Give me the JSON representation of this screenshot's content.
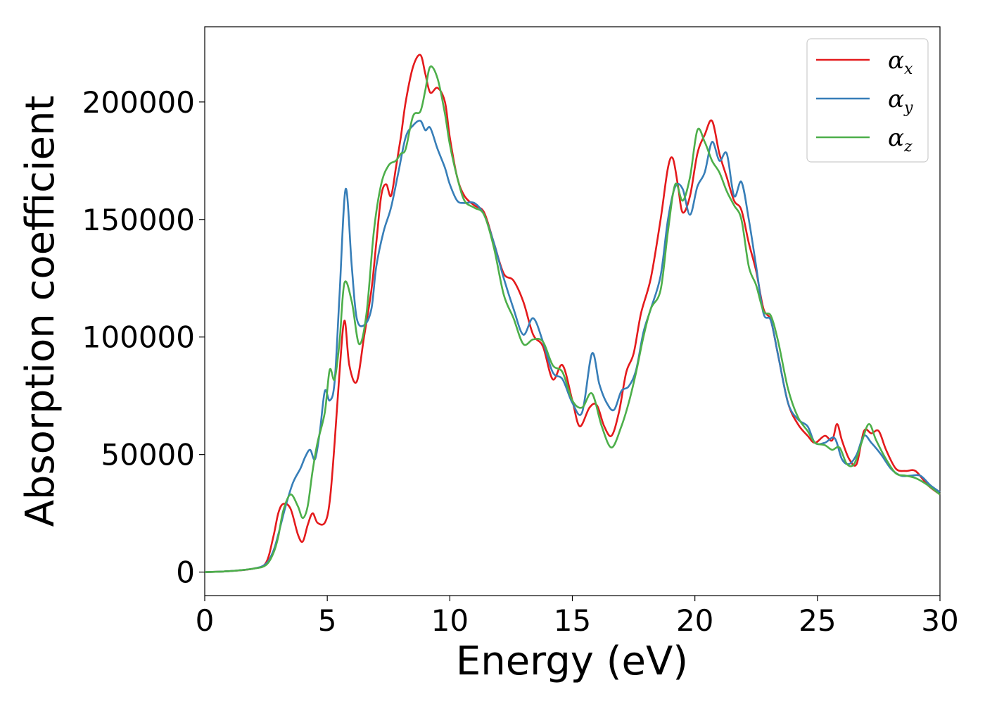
{
  "chart_data": {
    "type": "line",
    "title": "",
    "xlabel": "Energy (eV)",
    "ylabel": "Absorption coefficient",
    "xlim": [
      0,
      30
    ],
    "ylim": [
      -10000,
      232000
    ],
    "xticks": [
      0,
      5,
      10,
      15,
      20,
      25,
      30
    ],
    "yticks": [
      0,
      50000,
      100000,
      150000,
      200000
    ],
    "grid": false,
    "legend_position": "top-right",
    "series": [
      {
        "name": "α_x",
        "label_main": "α",
        "label_sub": "x",
        "color": "#e41a1c",
        "x": [
          0,
          1,
          2,
          2.5,
          2.8,
          3.0,
          3.2,
          3.5,
          3.8,
          4.0,
          4.2,
          4.4,
          4.6,
          4.9,
          5.1,
          5.3,
          5.5,
          5.7,
          5.9,
          6.2,
          6.5,
          6.8,
          7.0,
          7.2,
          7.4,
          7.6,
          7.8,
          8.0,
          8.2,
          8.5,
          8.8,
          9.0,
          9.2,
          9.5,
          9.8,
          10.0,
          10.3,
          10.6,
          11.0,
          11.4,
          11.8,
          12.2,
          12.6,
          13.0,
          13.4,
          13.8,
          14.2,
          14.6,
          15.0,
          15.3,
          15.7,
          16.0,
          16.3,
          16.6,
          16.9,
          17.2,
          17.5,
          17.8,
          18.2,
          18.6,
          18.9,
          19.1,
          19.3,
          19.5,
          19.8,
          20.1,
          20.4,
          20.7,
          21.0,
          21.3,
          21.6,
          21.9,
          22.2,
          22.5,
          22.8,
          23.1,
          23.4,
          23.8,
          24.2,
          24.6,
          24.9,
          25.3,
          25.6,
          25.8,
          26.0,
          26.3,
          26.6,
          26.9,
          27.2,
          27.5,
          27.8,
          28.2,
          28.6,
          29.0,
          29.5,
          30.0
        ],
        "values": [
          0,
          400,
          1500,
          4000,
          15000,
          25000,
          29000,
          27000,
          16000,
          13000,
          20000,
          25000,
          21000,
          21000,
          30000,
          55000,
          85000,
          107000,
          88000,
          81000,
          100000,
          120000,
          140000,
          160000,
          165000,
          160000,
          172000,
          185000,
          200000,
          215000,
          220000,
          212000,
          204000,
          206000,
          200000,
          185000,
          168000,
          160000,
          156000,
          153000,
          140000,
          127000,
          124000,
          115000,
          101000,
          96000,
          82000,
          88000,
          73000,
          62000,
          70000,
          71000,
          62000,
          58000,
          68000,
          85000,
          93000,
          110000,
          125000,
          150000,
          172000,
          176000,
          165000,
          153000,
          160000,
          178000,
          186000,
          192000,
          178000,
          168000,
          158000,
          154000,
          140000,
          128000,
          112000,
          107000,
          92000,
          72000,
          63000,
          58000,
          55000,
          58000,
          56000,
          63000,
          56000,
          48000,
          46000,
          60000,
          59000,
          60000,
          52000,
          44000,
          43000,
          43000,
          37000,
          33000
        ]
      },
      {
        "name": "α_y",
        "label_main": "α",
        "label_sub": "y",
        "color": "#377eb8",
        "x": [
          0,
          1,
          2,
          2.5,
          2.8,
          3.0,
          3.3,
          3.6,
          3.9,
          4.1,
          4.3,
          4.5,
          4.7,
          4.9,
          5.1,
          5.3,
          5.5,
          5.75,
          6.0,
          6.2,
          6.5,
          6.8,
          7.0,
          7.3,
          7.6,
          7.9,
          8.2,
          8.5,
          8.8,
          9.0,
          9.2,
          9.5,
          9.8,
          10.0,
          10.3,
          10.6,
          11.0,
          11.4,
          11.8,
          12.2,
          12.6,
          13.0,
          13.4,
          13.8,
          14.2,
          14.6,
          15.0,
          15.4,
          15.8,
          16.1,
          16.4,
          16.7,
          17.0,
          17.3,
          17.6,
          17.9,
          18.2,
          18.6,
          18.9,
          19.2,
          19.5,
          19.8,
          20.1,
          20.4,
          20.7,
          21.0,
          21.3,
          21.6,
          21.9,
          22.2,
          22.5,
          22.8,
          23.1,
          23.4,
          23.8,
          24.2,
          24.6,
          24.9,
          25.3,
          25.7,
          26.0,
          26.3,
          26.6,
          26.9,
          27.2,
          27.6,
          28.0,
          28.4,
          28.8,
          29.2,
          29.6,
          30.0
        ],
        "values": [
          0,
          400,
          1500,
          3500,
          9000,
          16000,
          28000,
          38000,
          44000,
          49000,
          52000,
          48000,
          60000,
          77000,
          73000,
          81000,
          118000,
          163000,
          130000,
          108000,
          105000,
          112000,
          130000,
          145000,
          155000,
          170000,
          185000,
          190000,
          192000,
          188000,
          189000,
          180000,
          172000,
          165000,
          158000,
          157000,
          157000,
          152000,
          140000,
          125000,
          112000,
          101000,
          108000,
          98000,
          85000,
          82000,
          72000,
          68000,
          93000,
          80000,
          72000,
          69000,
          77000,
          79000,
          86000,
          102000,
          112000,
          126000,
          150000,
          164000,
          163000,
          152000,
          164000,
          170000,
          183000,
          175000,
          178000,
          160000,
          166000,
          150000,
          130000,
          110000,
          107000,
          92000,
          72000,
          65000,
          62000,
          55000,
          55000,
          57000,
          48000,
          46000,
          50000,
          58000,
          55000,
          50000,
          44000,
          41000,
          41000,
          41000,
          37000,
          34000
        ]
      },
      {
        "name": "α_z",
        "label_main": "α",
        "label_sub": "z",
        "color": "#4daf4a",
        "x": [
          0,
          1,
          2,
          2.5,
          2.8,
          3.0,
          3.2,
          3.5,
          3.8,
          4.0,
          4.2,
          4.4,
          4.6,
          4.9,
          5.1,
          5.3,
          5.5,
          5.7,
          6.0,
          6.3,
          6.6,
          6.9,
          7.2,
          7.5,
          7.8,
          8.0,
          8.2,
          8.5,
          8.8,
          9.0,
          9.2,
          9.5,
          9.8,
          10.0,
          10.3,
          10.6,
          11.0,
          11.4,
          11.8,
          12.2,
          12.6,
          13.0,
          13.4,
          13.8,
          14.2,
          14.6,
          15.0,
          15.4,
          15.8,
          16.2,
          16.6,
          17.0,
          17.3,
          17.6,
          17.9,
          18.2,
          18.6,
          18.9,
          19.2,
          19.5,
          19.8,
          20.1,
          20.4,
          20.7,
          21.0,
          21.3,
          21.6,
          21.9,
          22.2,
          22.5,
          22.8,
          23.1,
          23.4,
          23.8,
          24.2,
          24.6,
          24.9,
          25.3,
          25.6,
          25.9,
          26.2,
          26.5,
          26.8,
          27.1,
          27.4,
          27.8,
          28.2,
          28.6,
          29.0,
          29.5,
          30.0
        ],
        "values": [
          0,
          400,
          1500,
          3000,
          8000,
          15000,
          26000,
          33000,
          28000,
          23000,
          28000,
          43000,
          55000,
          68000,
          86000,
          82000,
          98000,
          123000,
          115000,
          97000,
          110000,
          145000,
          165000,
          173000,
          175000,
          178000,
          180000,
          194000,
          196000,
          205000,
          215000,
          210000,
          195000,
          182000,
          168000,
          158000,
          155000,
          152000,
          138000,
          118000,
          108000,
          97000,
          99000,
          98000,
          88000,
          85000,
          73000,
          70000,
          76000,
          62000,
          53000,
          62000,
          72000,
          85000,
          100000,
          112000,
          120000,
          145000,
          165000,
          158000,
          168000,
          188000,
          183000,
          175000,
          170000,
          162000,
          156000,
          150000,
          130000,
          122000,
          111000,
          109000,
          98000,
          78000,
          66000,
          60000,
          55000,
          54000,
          52000,
          53000,
          46000,
          46000,
          55000,
          63000,
          56000,
          48000,
          42000,
          41000,
          40000,
          37000,
          33000
        ]
      }
    ]
  }
}
